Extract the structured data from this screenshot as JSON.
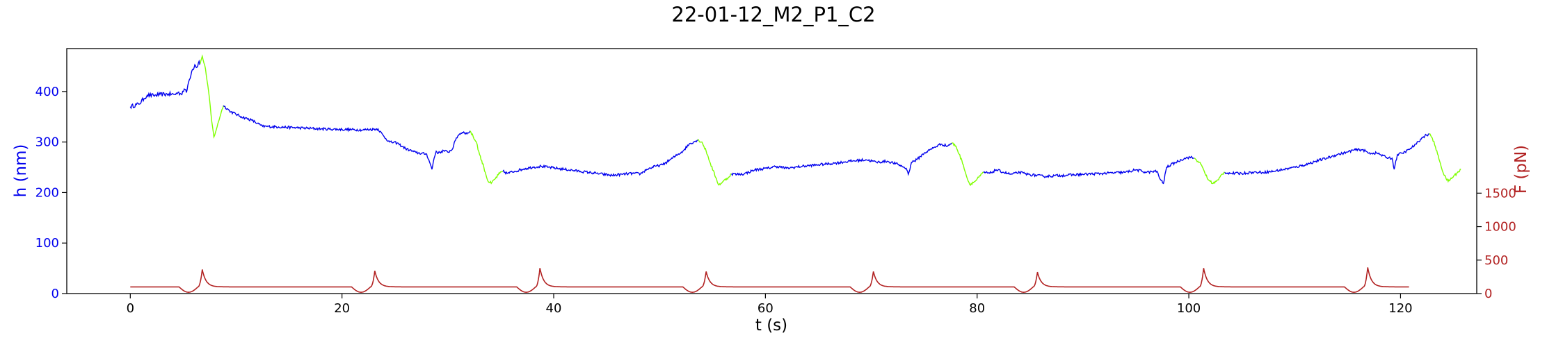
{
  "chart_data": {
    "type": "line",
    "title": "22-01-12_M2_P1_C2",
    "xlabel": "t (s)",
    "ylabel_left": "h (nm)",
    "ylabel_right": "F (pN)",
    "xlim": [
      -6,
      127.2
    ],
    "ylim_left": [
      0,
      485
    ],
    "ylim_right": [
      0,
      3660
    ],
    "x_ticks": [
      0,
      20,
      40,
      60,
      80,
      100,
      120
    ],
    "y_ticks_left": [
      0,
      100,
      200,
      300,
      400
    ],
    "y_ticks_right": [
      0,
      500,
      1000,
      1500
    ],
    "grid": false,
    "colors": {
      "height_trace": "#0000ee",
      "fast_segments": "#7fff00",
      "force_trace": "#b22222",
      "left_axis": "#0000ee",
      "right_axis": "#b22222"
    },
    "series": [
      {
        "axis": "left",
        "color": "#0000ee",
        "points": [
          [
            0,
            370
          ],
          [
            0.8,
            375
          ],
          [
            1.3,
            386
          ],
          [
            1.6,
            393
          ],
          [
            2.2,
            392
          ],
          [
            2.8,
            394
          ],
          [
            3.6,
            395
          ],
          [
            4.2,
            394
          ],
          [
            4.5,
            398
          ],
          [
            4.8,
            395
          ],
          [
            5.1,
            405
          ],
          [
            5.3,
            398
          ],
          [
            5.5,
            418
          ],
          [
            5.8,
            440
          ],
          [
            6.1,
            453
          ],
          [
            6.3,
            448
          ],
          [
            6.5,
            460
          ],
          [
            6.6,
            455
          ]
        ],
        "jitter": 4
      },
      {
        "axis": "left",
        "color": "#7fff00",
        "points": [
          [
            6.6,
            455
          ],
          [
            6.8,
            470
          ],
          [
            7.1,
            445
          ],
          [
            7.4,
            400
          ],
          [
            7.7,
            340
          ],
          [
            7.9,
            310
          ],
          [
            8.2,
            330
          ],
          [
            8.6,
            360
          ],
          [
            8.8,
            372
          ]
        ],
        "jitter": 2
      },
      {
        "axis": "left",
        "color": "#0000ee",
        "points": [
          [
            8.8,
            372
          ],
          [
            9.5,
            360
          ],
          [
            10.5,
            350
          ],
          [
            11.5,
            343
          ],
          [
            12,
            337
          ],
          [
            12.5,
            331
          ],
          [
            14,
            330
          ],
          [
            16,
            328
          ],
          [
            18,
            326
          ],
          [
            20,
            325
          ],
          [
            22,
            324
          ],
          [
            23.4,
            326
          ],
          [
            24,
            310
          ],
          [
            24.5,
            300
          ],
          [
            25.2,
            298
          ],
          [
            26,
            287
          ],
          [
            27,
            279
          ],
          [
            28,
            276
          ],
          [
            28.2,
            265
          ],
          [
            28.5,
            246
          ],
          [
            28.7,
            268
          ],
          [
            28.9,
            282
          ],
          [
            29.1,
            278
          ],
          [
            29.6,
            283
          ],
          [
            30,
            280
          ],
          [
            30.4,
            285
          ],
          [
            30.8,
            308
          ],
          [
            31.1,
            316
          ],
          [
            31.5,
            320
          ],
          [
            31.8,
            316
          ],
          [
            32.1,
            322
          ]
        ],
        "jitter": 2.5
      },
      {
        "axis": "left",
        "color": "#7fff00",
        "points": [
          [
            32.1,
            322
          ],
          [
            32.4,
            310
          ],
          [
            32.7,
            300
          ],
          [
            33,
            275
          ],
          [
            33.4,
            250
          ],
          [
            33.8,
            222
          ],
          [
            34.1,
            218
          ],
          [
            34.5,
            228
          ],
          [
            34.9,
            238
          ],
          [
            35.2,
            242
          ]
        ],
        "jitter": 3
      },
      {
        "axis": "left",
        "color": "#0000ee",
        "points": [
          [
            35.2,
            242
          ],
          [
            35.6,
            238
          ],
          [
            36.3,
            242
          ],
          [
            37.2,
            247
          ],
          [
            38,
            250
          ],
          [
            38.8,
            252
          ],
          [
            39.5,
            250
          ],
          [
            41,
            246
          ],
          [
            42.5,
            242
          ],
          [
            44,
            238
          ],
          [
            45.5,
            234
          ],
          [
            46.5,
            236
          ],
          [
            47.5,
            238
          ],
          [
            48.2,
            237
          ],
          [
            48.8,
            246
          ],
          [
            49.6,
            252
          ],
          [
            50.3,
            255
          ],
          [
            51,
            265
          ],
          [
            51.5,
            272
          ],
          [
            52.2,
            282
          ],
          [
            52.8,
            296
          ],
          [
            53.2,
            300
          ],
          [
            53.6,
            304
          ]
        ],
        "jitter": 2.5
      },
      {
        "axis": "left",
        "color": "#7fff00",
        "points": [
          [
            53.6,
            304
          ],
          [
            54,
            300
          ],
          [
            54.4,
            282
          ],
          [
            54.8,
            258
          ],
          [
            55.3,
            230
          ],
          [
            55.6,
            215
          ],
          [
            56,
            222
          ],
          [
            56.5,
            230
          ],
          [
            56.8,
            237
          ]
        ],
        "jitter": 2.5
      },
      {
        "axis": "left",
        "color": "#0000ee",
        "points": [
          [
            56.8,
            237
          ],
          [
            57.3,
            236
          ],
          [
            58,
            237
          ],
          [
            59,
            245
          ],
          [
            60.2,
            248
          ],
          [
            61,
            252
          ],
          [
            62,
            248
          ],
          [
            63.5,
            252
          ],
          [
            65,
            255
          ],
          [
            66.5,
            258
          ],
          [
            68,
            262
          ],
          [
            69.5,
            265
          ],
          [
            70.5,
            260
          ],
          [
            71.5,
            262
          ],
          [
            72.5,
            256
          ],
          [
            73.3,
            248
          ],
          [
            73.5,
            236
          ],
          [
            73.8,
            260
          ],
          [
            74.3,
            265
          ],
          [
            75,
            278
          ],
          [
            75.5,
            284
          ],
          [
            76,
            290
          ],
          [
            76.6,
            296
          ],
          [
            77.2,
            292
          ],
          [
            77.6,
            298
          ]
        ],
        "jitter": 2.5
      },
      {
        "axis": "left",
        "color": "#7fff00",
        "points": [
          [
            77.6,
            298
          ],
          [
            78,
            292
          ],
          [
            78.3,
            276
          ],
          [
            78.7,
            255
          ],
          [
            79,
            232
          ],
          [
            79.3,
            216
          ],
          [
            79.8,
            222
          ],
          [
            80.3,
            233
          ],
          [
            80.6,
            240
          ]
        ],
        "jitter": 2.5
      },
      {
        "axis": "left",
        "color": "#0000ee",
        "points": [
          [
            80.6,
            240
          ],
          [
            81.2,
            238
          ],
          [
            81.8,
            245
          ],
          [
            82.5,
            240
          ],
          [
            83.2,
            236
          ],
          [
            84,
            240
          ],
          [
            84.8,
            236
          ],
          [
            86.3,
            232
          ],
          [
            88,
            234
          ],
          [
            90,
            236
          ],
          [
            92,
            238
          ],
          [
            94,
            240
          ],
          [
            95,
            245
          ],
          [
            96,
            240
          ],
          [
            97,
            242
          ],
          [
            97.3,
            226
          ],
          [
            97.6,
            218
          ],
          [
            97.9,
            250
          ],
          [
            98.3,
            255
          ],
          [
            99,
            262
          ],
          [
            99.6,
            268
          ],
          [
            100.1,
            270
          ],
          [
            100.5,
            268
          ]
        ],
        "jitter": 2.5
      },
      {
        "axis": "left",
        "color": "#7fff00",
        "points": [
          [
            100.5,
            268
          ],
          [
            101,
            260
          ],
          [
            101.4,
            245
          ],
          [
            101.8,
            226
          ],
          [
            102.3,
            218
          ],
          [
            102.8,
            225
          ],
          [
            103.1,
            236
          ],
          [
            103.4,
            240
          ]
        ],
        "jitter": 2.5
      },
      {
        "axis": "left",
        "color": "#0000ee",
        "points": [
          [
            103.4,
            240
          ],
          [
            104,
            238
          ],
          [
            105,
            238
          ],
          [
            106,
            240
          ],
          [
            107,
            240
          ],
          [
            108,
            242
          ],
          [
            109,
            246
          ],
          [
            110,
            250
          ],
          [
            111,
            255
          ],
          [
            112,
            262
          ],
          [
            113,
            268
          ],
          [
            114,
            275
          ],
          [
            115,
            280
          ],
          [
            115.5,
            284
          ],
          [
            116.4,
            285
          ],
          [
            117,
            278
          ],
          [
            117.8,
            278
          ],
          [
            118.6,
            270
          ],
          [
            119.2,
            268
          ],
          [
            119.4,
            246
          ],
          [
            119.7,
            275
          ],
          [
            120.2,
            278
          ],
          [
            120.8,
            285
          ],
          [
            121.5,
            296
          ],
          [
            121.9,
            306
          ],
          [
            122.3,
            312
          ],
          [
            122.7,
            316
          ]
        ],
        "jitter": 2.5
      },
      {
        "axis": "left",
        "color": "#7fff00",
        "points": [
          [
            122.7,
            316
          ],
          [
            123,
            308
          ],
          [
            123.3,
            290
          ],
          [
            123.7,
            262
          ],
          [
            124.1,
            235
          ],
          [
            124.5,
            222
          ],
          [
            124.9,
            230
          ],
          [
            125.3,
            238
          ],
          [
            125.7,
            246
          ]
        ],
        "jitter": 2.5
      }
    ],
    "force_series": {
      "axis": "right",
      "color": "#b22222",
      "baseline": 100,
      "peaks": [
        6.8,
        23.1,
        38.7,
        54.4,
        70.2,
        85.7,
        101.4,
        116.9
      ],
      "peak_values": [
        360,
        340,
        380,
        330,
        330,
        320,
        380,
        390
      ],
      "dip_value": 10,
      "end": 120.8
    }
  }
}
